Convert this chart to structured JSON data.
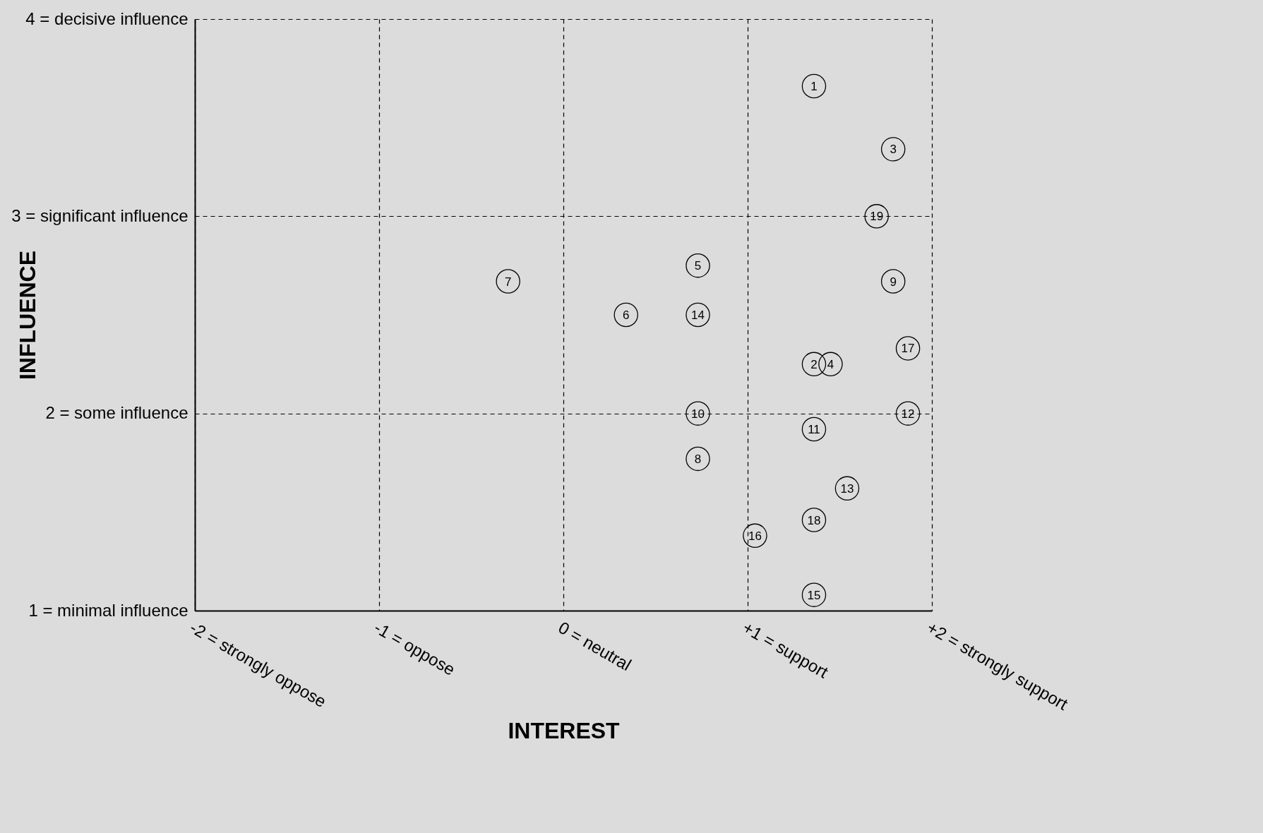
{
  "chart_data": {
    "type": "scatter",
    "xlabel": "INTEREST",
    "ylabel": "INFLUENCE",
    "x": [
      1.36,
      1.36,
      1.79,
      1.45,
      0.73,
      0.34,
      -0.3,
      0.73,
      1.79,
      0.73,
      1.36,
      1.87,
      1.54,
      0.73,
      1.36,
      1.04,
      1.87,
      1.36,
      1.7
    ],
    "values": [
      3.66,
      2.25,
      3.34,
      2.25,
      2.75,
      2.5,
      2.67,
      1.77,
      2.67,
      2.0,
      1.92,
      2.0,
      1.62,
      2.5,
      1.08,
      1.38,
      2.33,
      1.46,
      3.0
    ],
    "color": "#000000",
    "marker": "circle",
    "annotations": [
      {
        "text": "1",
        "x": 1.36,
        "y": 3.66
      },
      {
        "text": "2",
        "x": 1.36,
        "y": 2.25
      },
      {
        "text": "3",
        "x": 1.79,
        "y": 3.34
      },
      {
        "text": "4",
        "x": 1.45,
        "y": 2.25
      },
      {
        "text": "5",
        "x": 0.73,
        "y": 2.75
      },
      {
        "text": "6",
        "x": 0.34,
        "y": 2.5
      },
      {
        "text": "7",
        "x": -0.3,
        "y": 2.67
      },
      {
        "text": "8",
        "x": 0.73,
        "y": 1.77
      },
      {
        "text": "9",
        "x": 1.79,
        "y": 2.67
      },
      {
        "text": "10",
        "x": 0.73,
        "y": 2.0
      },
      {
        "text": "11",
        "x": 1.36,
        "y": 1.92
      },
      {
        "text": "12",
        "x": 1.87,
        "y": 2.0
      },
      {
        "text": "13",
        "x": 1.54,
        "y": 1.62
      },
      {
        "text": "14",
        "x": 0.73,
        "y": 2.5
      },
      {
        "text": "15",
        "x": 1.36,
        "y": 1.08
      },
      {
        "text": "16",
        "x": 1.04,
        "y": 1.38
      },
      {
        "text": "17",
        "x": 1.87,
        "y": 2.33
      },
      {
        "text": "18",
        "x": 1.36,
        "y": 1.46
      },
      {
        "text": "19",
        "x": 1.7,
        "y": 3.0
      }
    ],
    "xlim": [
      -2,
      2
    ],
    "xticks": [
      {
        "value": -2,
        "label": "-2 = strongly oppose"
      },
      {
        "value": -1,
        "label": "-1 = oppose"
      },
      {
        "value": 0,
        "label": "0 = neutral"
      },
      {
        "value": 1,
        "label": "+1 = support"
      },
      {
        "value": 2,
        "label": "+2 = strongly support"
      }
    ],
    "ylim": [
      1,
      4
    ],
    "yticks": [
      {
        "value": 1,
        "label": "1 = minimal influence"
      },
      {
        "value": 2,
        "label": "2 = some influence"
      },
      {
        "value": 3,
        "label": "3 = significant influence"
      },
      {
        "value": 4,
        "label": "4 = decisive influence"
      }
    ],
    "grid": true,
    "line_style": "dashed"
  }
}
